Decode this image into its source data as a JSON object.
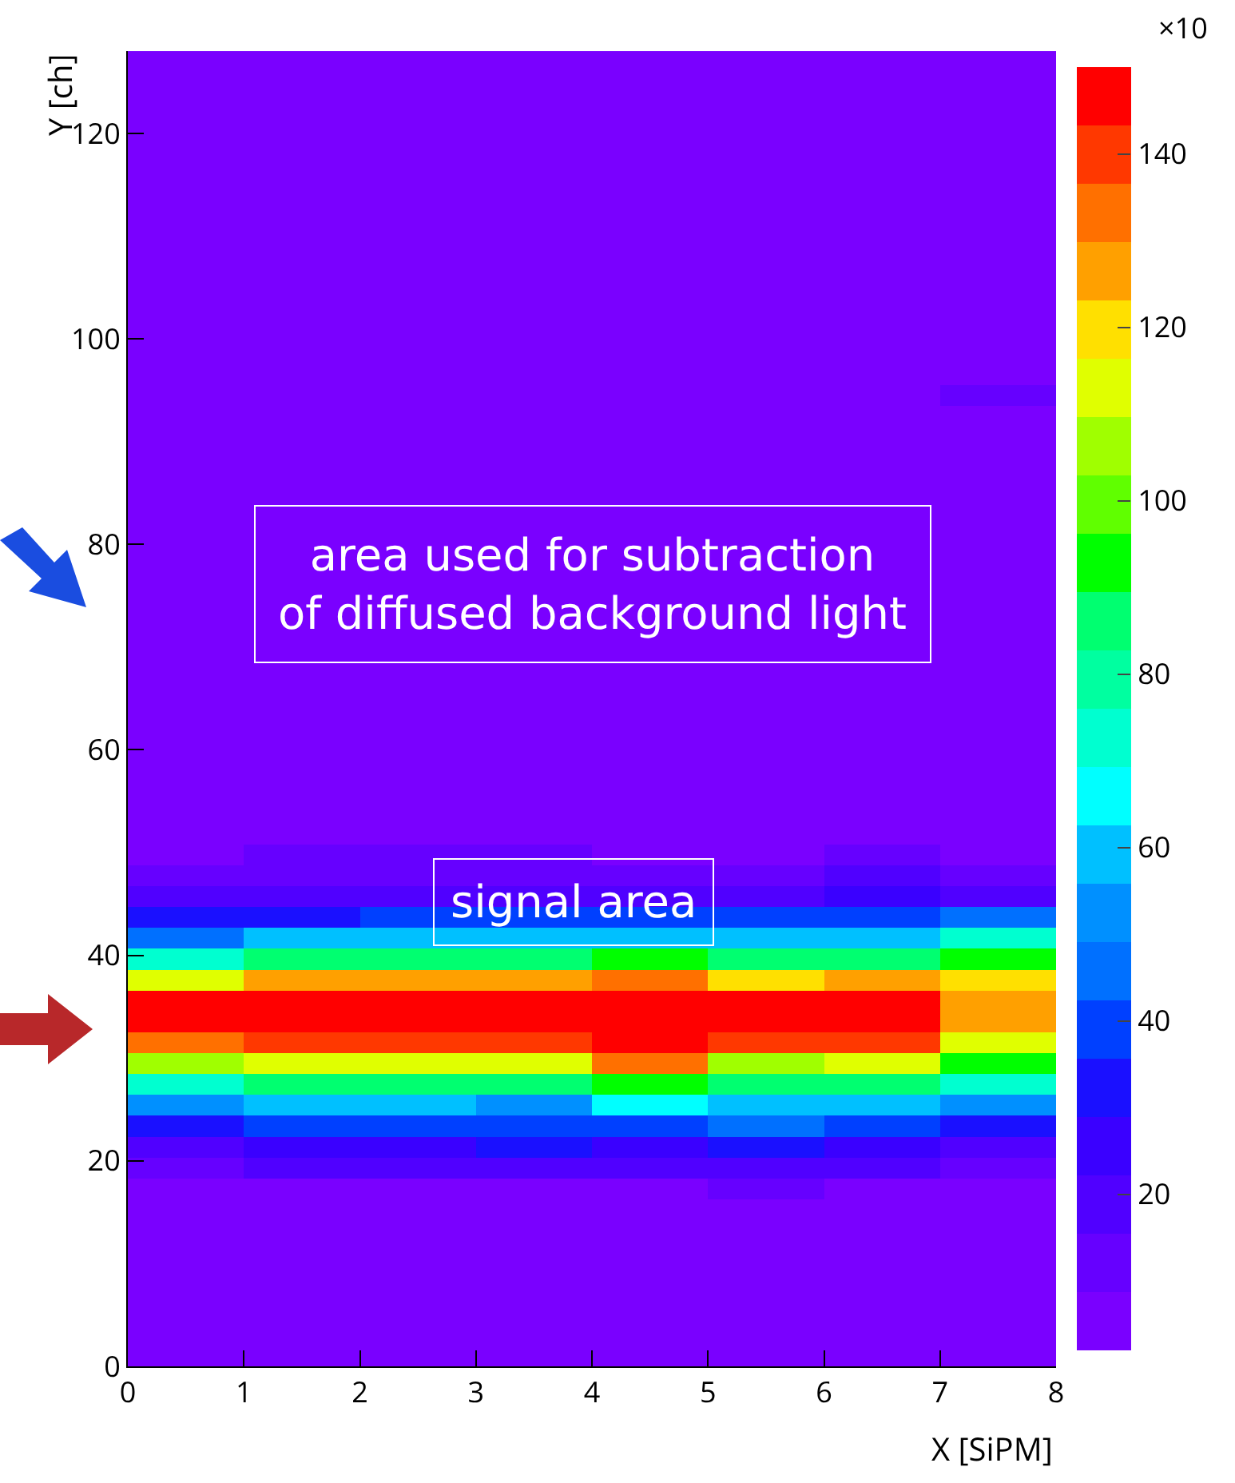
{
  "chart_data": {
    "type": "heatmap",
    "xlabel": "X [SiPM]",
    "ylabel": "Y [ch]",
    "clabel": "×10",
    "xlim": [
      0,
      8
    ],
    "xticks": [
      0,
      1,
      2,
      3,
      4,
      5,
      6,
      7,
      8
    ],
    "ylim": [
      0,
      128
    ],
    "yticks": [
      0,
      20,
      40,
      60,
      80,
      100,
      120
    ],
    "clim": [
      2,
      150
    ],
    "cticks": [
      20,
      40,
      60,
      80,
      100,
      120,
      140
    ],
    "annotations": [
      "area used for subtraction\nof diffused background light",
      "signal area"
    ],
    "cells": [
      [
        3,
        3,
        3,
        3,
        3,
        3,
        3,
        3
      ],
      [
        3,
        3,
        3,
        3,
        3,
        3,
        3,
        3
      ],
      [
        3,
        3,
        3,
        3,
        3,
        3,
        3,
        3
      ],
      [
        3,
        3,
        3,
        3,
        3,
        3,
        3,
        3
      ],
      [
        3,
        3,
        3,
        3,
        3,
        3,
        3,
        3
      ],
      [
        3,
        3,
        3,
        3,
        3,
        3,
        3,
        3
      ],
      [
        3,
        3,
        3,
        3,
        3,
        3,
        3,
        3
      ],
      [
        3,
        3,
        3,
        3,
        3,
        3,
        3,
        3
      ],
      [
        3,
        3,
        3,
        3,
        3,
        3,
        3,
        3
      ],
      [
        3,
        3,
        3,
        3,
        3,
        3,
        3,
        3
      ],
      [
        3,
        3,
        3,
        3,
        3,
        3,
        3,
        3
      ],
      [
        3,
        3,
        3,
        3,
        3,
        3,
        3,
        3
      ],
      [
        3,
        3,
        3,
        3,
        3,
        3,
        3,
        3
      ],
      [
        3,
        3,
        3,
        3,
        3,
        3,
        3,
        3
      ],
      [
        3,
        3,
        3,
        3,
        3,
        3,
        3,
        3
      ],
      [
        3,
        3,
        3,
        3,
        3,
        3,
        3,
        3
      ],
      [
        3,
        3,
        3,
        3,
        3,
        3,
        3,
        12
      ],
      [
        3,
        3,
        3,
        3,
        3,
        3,
        3,
        3
      ],
      [
        3,
        3,
        3,
        3,
        3,
        3,
        3,
        3
      ],
      [
        3,
        3,
        3,
        3,
        3,
        3,
        3,
        3
      ],
      [
        3,
        3,
        3,
        3,
        3,
        3,
        3,
        3
      ],
      [
        3,
        3,
        3,
        3,
        3,
        3,
        3,
        3
      ],
      [
        3,
        3,
        3,
        3,
        3,
        3,
        3,
        3
      ],
      [
        3,
        3,
        3,
        3,
        3,
        3,
        3,
        3
      ],
      [
        3,
        3,
        3,
        3,
        3,
        3,
        3,
        3
      ],
      [
        3,
        3,
        3,
        3,
        3,
        3,
        3,
        3
      ],
      [
        3,
        3,
        3,
        3,
        3,
        3,
        3,
        3
      ],
      [
        3,
        3,
        3,
        3,
        3,
        3,
        3,
        3
      ],
      [
        3,
        3,
        3,
        3,
        3,
        3,
        3,
        3
      ],
      [
        3,
        3,
        3,
        3,
        3,
        3,
        3,
        3
      ],
      [
        3,
        3,
        3,
        3,
        3,
        3,
        3,
        3
      ],
      [
        3,
        3,
        3,
        3,
        3,
        3,
        3,
        3
      ],
      [
        3,
        3,
        3,
        3,
        3,
        3,
        3,
        3
      ],
      [
        3,
        3,
        3,
        3,
        3,
        3,
        3,
        3
      ],
      [
        3,
        3,
        3,
        3,
        3,
        3,
        3,
        3
      ],
      [
        3,
        3,
        3,
        3,
        3,
        3,
        3,
        3
      ],
      [
        3,
        3,
        3,
        3,
        3,
        3,
        3,
        3
      ],
      [
        3,
        3,
        8,
        3,
        3,
        3,
        8,
        5
      ],
      [
        6,
        10,
        10,
        10,
        8,
        8,
        12,
        8
      ],
      [
        12,
        14,
        14,
        14,
        14,
        14,
        16,
        14
      ],
      [
        20,
        22,
        22,
        22,
        22,
        22,
        24,
        22
      ],
      [
        30,
        35,
        38,
        36,
        38,
        36,
        40,
        45
      ],
      [
        48,
        60,
        62,
        60,
        62,
        58,
        62,
        70
      ],
      [
        75,
        85,
        88,
        86,
        90,
        84,
        88,
        95
      ],
      [
        115,
        125,
        128,
        125,
        135,
        122,
        128,
        120
      ],
      [
        146,
        146,
        147,
        146,
        147,
        146,
        147,
        128
      ],
      [
        146,
        146,
        147,
        146,
        147,
        146,
        147,
        128
      ],
      [
        135,
        140,
        142,
        140,
        145,
        138,
        142,
        115
      ],
      [
        105,
        110,
        112,
        110,
        130,
        108,
        112,
        95
      ],
      [
        75,
        85,
        88,
        86,
        95,
        84,
        85,
        70
      ],
      [
        50,
        60,
        62,
        55,
        65,
        56,
        60,
        50
      ],
      [
        32,
        40,
        42,
        40,
        42,
        45,
        42,
        35
      ],
      [
        22,
        26,
        28,
        30,
        28,
        30,
        28,
        22
      ],
      [
        14,
        16,
        18,
        18,
        18,
        16,
        18,
        14
      ],
      [
        6,
        8,
        8,
        8,
        8,
        10,
        8,
        6
      ],
      [
        3,
        4,
        4,
        4,
        4,
        5,
        4,
        3
      ],
      [
        3,
        3,
        3,
        3,
        3,
        3,
        3,
        3
      ],
      [
        3,
        3,
        3,
        3,
        3,
        3,
        3,
        3
      ],
      [
        3,
        3,
        3,
        3,
        3,
        3,
        3,
        3
      ],
      [
        3,
        3,
        3,
        3,
        3,
        3,
        3,
        3
      ],
      [
        3,
        3,
        3,
        3,
        3,
        3,
        3,
        3
      ],
      [
        3,
        3,
        3,
        3,
        3,
        3,
        3,
        3
      ],
      [
        3,
        3,
        3,
        3,
        3,
        3,
        3,
        3
      ]
    ]
  }
}
